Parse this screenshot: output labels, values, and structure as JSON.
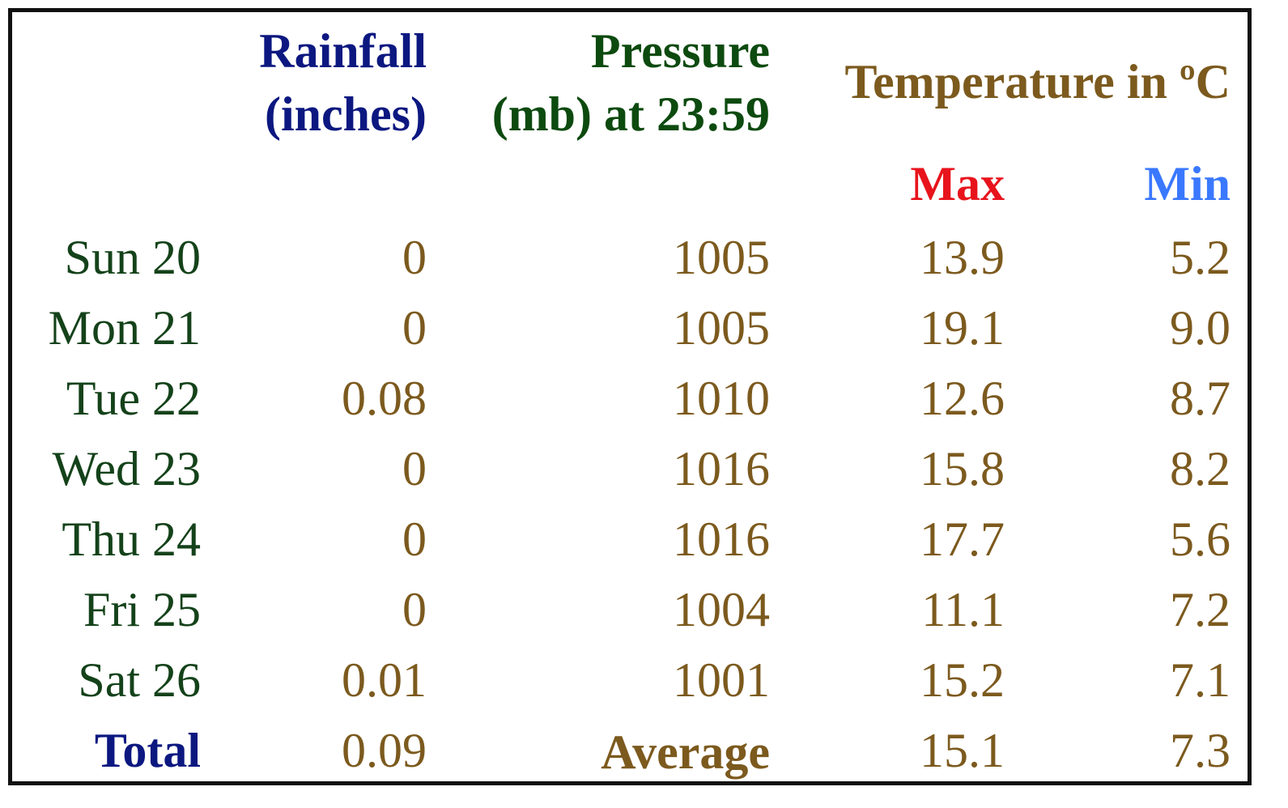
{
  "headers": {
    "rainfall_line1": "Rainfall",
    "rainfall_line2": "(inches)",
    "pressure_line1": "Pressure",
    "pressure_line2": "(mb) at 23:59",
    "temperature": "Temperature in ºC",
    "max": "Max",
    "min": "Min"
  },
  "rows": [
    {
      "day": "Sun 20",
      "rain": "0",
      "pressure": "1005",
      "max": "13.9",
      "min": "5.2"
    },
    {
      "day": "Mon 21",
      "rain": "0",
      "pressure": "1005",
      "max": "19.1",
      "min": "9.0"
    },
    {
      "day": "Tue 22",
      "rain": "0.08",
      "pressure": "1010",
      "max": "12.6",
      "min": "8.7"
    },
    {
      "day": "Wed 23",
      "rain": "0",
      "pressure": "1016",
      "max": "15.8",
      "min": "8.2"
    },
    {
      "day": "Thu 24",
      "rain": "0",
      "pressure": "1016",
      "max": "17.7",
      "min": "5.6"
    },
    {
      "day": "Fri 25",
      "rain": "0",
      "pressure": "1004",
      "max": "11.1",
      "min": "7.2"
    },
    {
      "day": "Sat 26",
      "rain": "0.01",
      "pressure": "1001",
      "max": "15.2",
      "min": "7.1"
    }
  ],
  "summary": {
    "total_label": "Total",
    "total_rain": "0.09",
    "average_label": "Average",
    "average_max": "15.1",
    "average_min": "7.3"
  },
  "colors": {
    "rainfall_header": "#0c1880",
    "pressure_header": "#0d4a0f",
    "temperature_header": "#7c5a1e",
    "max_header": "#e8141c",
    "min_header": "#3a78ff",
    "day_labels": "#14421a",
    "values": "#7c5a1e"
  }
}
